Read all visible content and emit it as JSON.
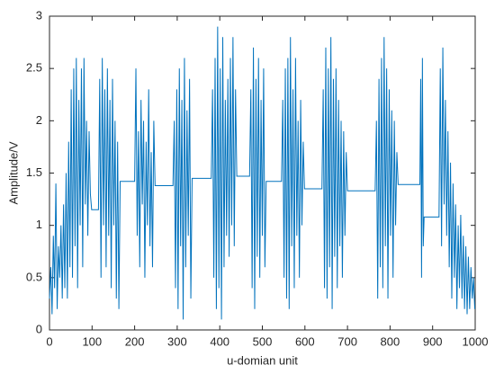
{
  "chart_data": {
    "type": "line",
    "xlabel": "u-domian unit",
    "ylabel": "Amplitude/V",
    "color": "#0072bd",
    "xlim": [
      0,
      1000
    ],
    "xticks": [
      0,
      100,
      200,
      300,
      400,
      500,
      600,
      700,
      800,
      900,
      1000
    ],
    "ylim": [
      0,
      3
    ],
    "yticks": [
      0,
      0.5,
      1,
      1.5,
      2,
      2.5,
      3
    ],
    "x": [
      0,
      3,
      6,
      9,
      12,
      15,
      18,
      21,
      24,
      27,
      30,
      33,
      36,
      39,
      42,
      45,
      48,
      51,
      54,
      57,
      60,
      63,
      66,
      69,
      72,
      75,
      78,
      81,
      84,
      87,
      90,
      93,
      96,
      99,
      115,
      118,
      121,
      124,
      127,
      130,
      133,
      136,
      139,
      142,
      145,
      148,
      151,
      154,
      157,
      160,
      163,
      166,
      200,
      203,
      206,
      209,
      212,
      215,
      218,
      221,
      224,
      227,
      230,
      233,
      236,
      239,
      242,
      245,
      248,
      290,
      293,
      296,
      299,
      302,
      305,
      308,
      311,
      314,
      317,
      320,
      323,
      326,
      329,
      332,
      335,
      380,
      383,
      386,
      389,
      392,
      395,
      398,
      401,
      404,
      407,
      410,
      413,
      416,
      419,
      422,
      425,
      428,
      431,
      434,
      437,
      440,
      470,
      473,
      476,
      479,
      482,
      485,
      488,
      491,
      494,
      497,
      500,
      503,
      506,
      509,
      545,
      548,
      551,
      554,
      557,
      560,
      563,
      566,
      569,
      572,
      575,
      578,
      581,
      584,
      587,
      590,
      593,
      596,
      599,
      640,
      643,
      646,
      649,
      652,
      655,
      658,
      661,
      664,
      667,
      670,
      673,
      676,
      679,
      682,
      685,
      688,
      691,
      694,
      697,
      700,
      765,
      768,
      771,
      774,
      777,
      780,
      783,
      786,
      789,
      792,
      795,
      798,
      801,
      804,
      807,
      810,
      813,
      816,
      819,
      870,
      872,
      874,
      876,
      878,
      880,
      915,
      918,
      921,
      924,
      927,
      930,
      933,
      936,
      939,
      942,
      945,
      948,
      951,
      954,
      957,
      960,
      963,
      966,
      969,
      972,
      975,
      978,
      981,
      984,
      987,
      990,
      993,
      996,
      999
    ],
    "values": [
      0.3,
      0.6,
      0.15,
      0.9,
      0.4,
      1.4,
      0.2,
      0.8,
      0.5,
      1.0,
      0.3,
      1.2,
      0.4,
      1.5,
      0.3,
      1.8,
      0.6,
      2.3,
      0.5,
      2.5,
      0.8,
      2.6,
      0.4,
      2.2,
      1.0,
      2.5,
      0.6,
      2.6,
      1.2,
      2.0,
      0.9,
      1.9,
      1.3,
      1.15,
      1.15,
      2.4,
      0.5,
      2.6,
      1.0,
      2.3,
      0.6,
      2.5,
      0.9,
      2.2,
      0.4,
      2.4,
      1.0,
      2.0,
      0.3,
      1.8,
      0.2,
      1.42,
      1.42,
      2.5,
      0.9,
      1.9,
      0.6,
      2.2,
      1.2,
      2.0,
      0.5,
      1.8,
      1.0,
      2.3,
      0.8,
      1.7,
      0.6,
      2.0,
      1.38,
      1.38,
      2.0,
      0.4,
      2.3,
      0.2,
      2.5,
      0.8,
      2.2,
      0.1,
      2.6,
      0.6,
      2.1,
      0.9,
      2.4,
      0.3,
      1.45,
      1.45,
      2.3,
      0.5,
      2.6,
      0.2,
      2.9,
      0.4,
      2.5,
      0.1,
      2.8,
      0.6,
      2.2,
      0.9,
      2.4,
      0.7,
      2.6,
      1.0,
      2.8,
      0.8,
      2.3,
      1.47,
      1.47,
      2.3,
      0.4,
      2.7,
      0.2,
      2.4,
      0.7,
      2.6,
      0.5,
      2.2,
      0.9,
      2.5,
      0.6,
      1.42,
      1.42,
      2.2,
      0.5,
      2.5,
      0.3,
      2.6,
      0.2,
      2.8,
      0.8,
      2.3,
      0.4,
      2.6,
      0.9,
      2.0,
      0.5,
      2.2,
      1.0,
      1.8,
      1.35,
      1.35,
      2.3,
      0.4,
      2.7,
      0.3,
      2.5,
      0.6,
      2.8,
      0.2,
      2.4,
      0.7,
      2.5,
      0.4,
      2.2,
      0.8,
      2.0,
      0.5,
      1.9,
      0.9,
      1.7,
      1.33,
      1.33,
      2.0,
      0.3,
      2.4,
      0.6,
      2.6,
      0.4,
      2.8,
      0.8,
      2.5,
      0.3,
      2.3,
      0.9,
      2.1,
      0.5,
      2.0,
      1.0,
      1.7,
      1.39,
      1.39,
      2.4,
      0.5,
      2.6,
      0.8,
      1.08,
      1.08,
      2.5,
      0.8,
      2.7,
      1.2,
      2.2,
      0.9,
      1.9,
      0.6,
      1.6,
      0.3,
      1.4,
      0.5,
      1.2,
      0.2,
      1.0,
      0.4,
      1.1,
      0.3,
      0.9,
      0.2,
      0.8,
      0.15,
      0.7,
      0.2,
      0.6,
      0.3,
      0.5,
      0.2
    ]
  }
}
